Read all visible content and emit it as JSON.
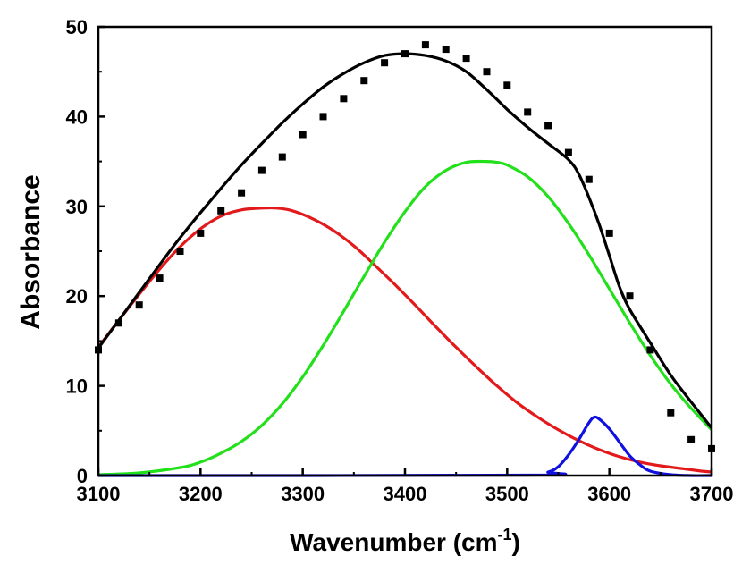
{
  "chart_data": {
    "type": "line",
    "title": "",
    "xlabel": "Wavenumber (cm",
    "xlabel_sup": "-1",
    "xlabel_close": ")",
    "ylabel": "Absorbance",
    "xlim": [
      3100,
      3700
    ],
    "ylim": [
      0,
      50
    ],
    "xticks": [
      "3100",
      "3200",
      "3300",
      "3400",
      "3500",
      "3600",
      "3700"
    ],
    "yticks": [
      "0",
      "10",
      "20",
      "30",
      "40",
      "50"
    ],
    "grid": false,
    "legend": "none",
    "colors": {
      "data": "#000000",
      "fit": "#000000",
      "peak1": "#e31a1c",
      "peak2": "#22e01a",
      "peak3": "#1010e0"
    },
    "data_points": {
      "x": [
        3100,
        3120,
        3140,
        3160,
        3180,
        3200,
        3220,
        3240,
        3260,
        3280,
        3300,
        3320,
        3340,
        3360,
        3380,
        3400,
        3420,
        3440,
        3460,
        3480,
        3500,
        3520,
        3540,
        3560,
        3580,
        3600,
        3620,
        3640,
        3660,
        3680,
        3700
      ],
      "y": [
        14,
        17,
        19,
        22,
        25,
        27,
        29.5,
        31.5,
        34,
        35.5,
        38,
        40,
        42,
        44,
        46,
        47,
        48,
        47.5,
        46.5,
        45,
        43.5,
        40.5,
        39,
        36,
        33,
        27,
        20,
        14,
        7,
        4,
        3
      ]
    },
    "series": [
      {
        "x": [
          3100,
          3120,
          3140,
          3160,
          3180,
          3200,
          3220,
          3240,
          3260,
          3280,
          3300,
          3320,
          3340,
          3360,
          3380,
          3400,
          3420,
          3440,
          3460,
          3480,
          3500,
          3520,
          3540,
          3560,
          3570,
          3580,
          3590,
          3600,
          3610,
          3620,
          3640,
          3660,
          3680,
          3700
        ],
        "y": [
          14.2,
          17.3,
          20.4,
          23.5,
          26.5,
          29.3,
          32.0,
          34.6,
          37.0,
          39.3,
          41.4,
          43.3,
          44.8,
          46.0,
          46.8,
          47.0,
          46.8,
          46.2,
          45.0,
          43.0,
          40.8,
          38.8,
          37.0,
          35.2,
          33.6,
          31.0,
          28.0,
          24.5,
          21.0,
          18.5,
          14.8,
          11.2,
          8.2,
          5.3
        ]
      },
      {
        "x": [
          3100,
          3120,
          3140,
          3160,
          3180,
          3200,
          3220,
          3240,
          3260,
          3275,
          3290,
          3310,
          3330,
          3350,
          3370,
          3390,
          3410,
          3430,
          3450,
          3470,
          3490,
          3510,
          3530,
          3550,
          3570,
          3590,
          3610,
          3630,
          3650,
          3670,
          3690,
          3700
        ],
        "y": [
          14.3,
          17.3,
          20.2,
          23.0,
          25.5,
          27.5,
          28.9,
          29.6,
          29.8,
          29.8,
          29.5,
          28.6,
          27.3,
          25.6,
          23.5,
          21.3,
          19.0,
          16.6,
          14.3,
          12.1,
          10.0,
          8.1,
          6.5,
          5.1,
          3.9,
          2.9,
          2.1,
          1.5,
          1.1,
          0.8,
          0.5,
          0.4
        ]
      },
      {
        "x": [
          3100,
          3140,
          3180,
          3200,
          3220,
          3240,
          3260,
          3280,
          3300,
          3320,
          3340,
          3360,
          3380,
          3400,
          3420,
          3440,
          3460,
          3480,
          3490,
          3500,
          3520,
          3540,
          3560,
          3580,
          3600,
          3620,
          3640,
          3660,
          3680,
          3700
        ],
        "y": [
          0.1,
          0.3,
          0.9,
          1.5,
          2.5,
          3.8,
          5.6,
          8.0,
          11.0,
          14.5,
          18.3,
          22.2,
          26.0,
          29.4,
          32.2,
          34.0,
          34.9,
          35.0,
          34.9,
          34.6,
          33.3,
          31.1,
          28.1,
          24.6,
          20.8,
          17.0,
          13.4,
          10.2,
          7.5,
          5.1
        ]
      },
      {
        "x": [
          3100,
          3520,
          3540,
          3550,
          3560,
          3570,
          3580,
          3585,
          3590,
          3600,
          3610,
          3620,
          3630,
          3640,
          3660,
          3680,
          3700
        ],
        "y": [
          0,
          0.05,
          0.4,
          1.0,
          2.3,
          4.0,
          5.9,
          6.5,
          6.3,
          5.2,
          3.7,
          2.2,
          1.2,
          0.5,
          0.1,
          0.0,
          0.0
        ]
      }
    ]
  }
}
